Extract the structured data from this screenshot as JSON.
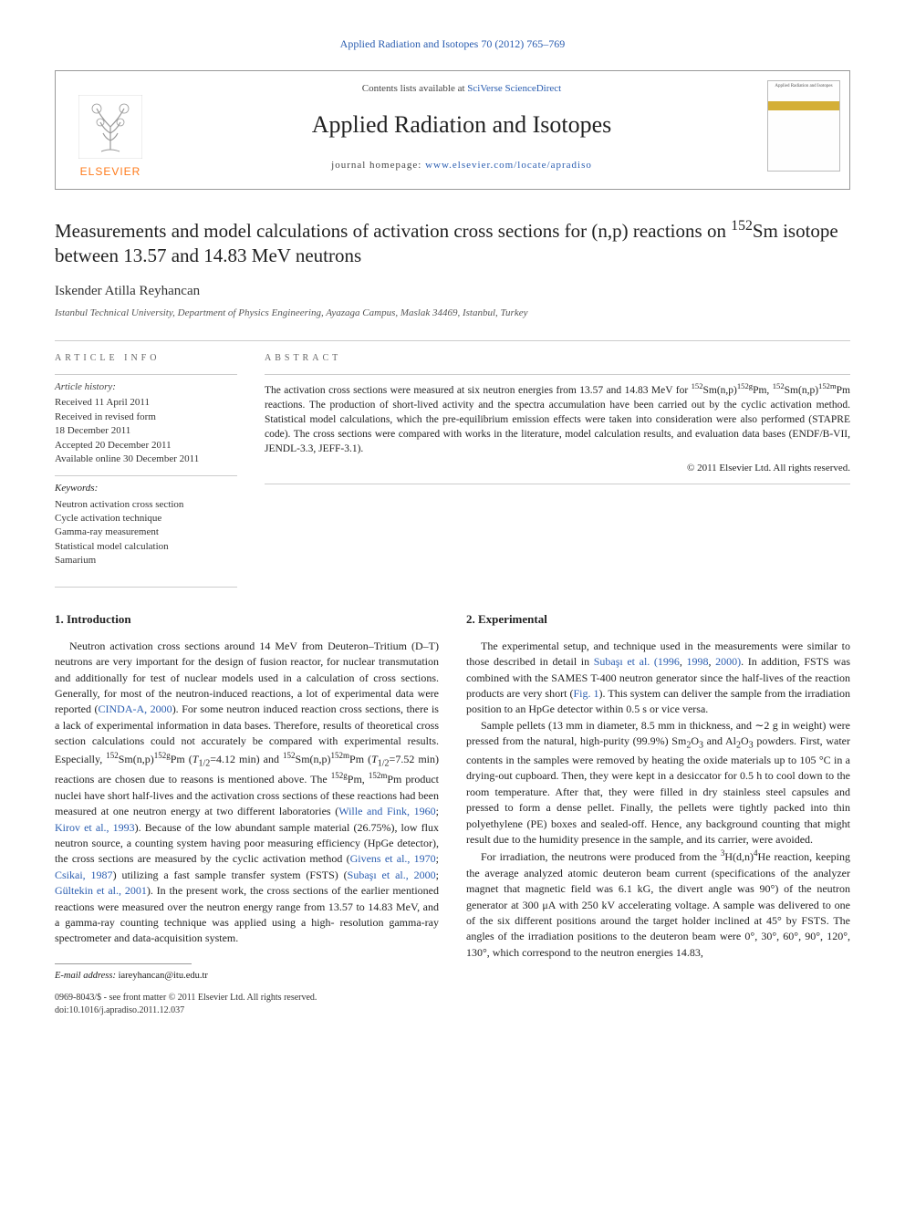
{
  "header": {
    "topLink": "Applied Radiation and Isotopes 70 (2012) 765–769",
    "contentsLine_pre": "Contents lists available at ",
    "contentsLine_link": "SciVerse ScienceDirect",
    "journalTitle": "Applied Radiation and Isotopes",
    "homepage_pre": "journal homepage: ",
    "homepage_link": "www.elsevier.com/locate/apradiso",
    "publisher": "ELSEVIER",
    "coverTitle": "Applied Radiation and Isotopes"
  },
  "paper": {
    "title_html": "Measurements and model calculations of activation cross sections for (n,p) reactions on <sup>152</sup>Sm isotope between 13.57 and 14.83 MeV neutrons",
    "author": "Iskender Atilla Reyhancan",
    "affiliation": "Istanbul Technical University, Department of Physics Engineering, Ayazaga Campus, Maslak 34469, Istanbul, Turkey"
  },
  "info": {
    "label": "ARTICLE INFO",
    "historyHdr": "Article history:",
    "history": [
      "Received 11 April 2011",
      "Received in revised form",
      "18 December 2011",
      "Accepted 20 December 2011",
      "Available online 30 December 2011"
    ],
    "keywordsHdr": "Keywords:",
    "keywords": [
      "Neutron activation cross section",
      "Cycle activation technique",
      "Gamma-ray measurement",
      "Statistical model calculation",
      "Samarium"
    ]
  },
  "abstract": {
    "label": "ABSTRACT",
    "text_html": "The activation cross sections were measured at six neutron energies from 13.57 and 14.83 MeV for <sup>152</sup>Sm(n,p)<sup>152g</sup>Pm, <sup>152</sup>Sm(n,p)<sup>152m</sup>Pm reactions. The production of short-lived activity and the spectra accumulation have been carried out by the cyclic activation method. Statistical model calculations, which the pre-equilibrium emission effects were taken into consideration were also performed (STAPRE code). The cross sections were compared with works in the literature, model calculation results, and evaluation data bases (ENDF/B-VII, JENDL-3.3, JEFF-3.1).",
    "copyright": "© 2011 Elsevier Ltd. All rights reserved."
  },
  "body": {
    "s1": {
      "heading": "1.  Introduction",
      "p1_html": "Neutron activation cross sections around 14 MeV from Deuteron–Tritium (D–T) neutrons are very important for the design of fusion reactor, for nuclear transmutation and additionally for test of nuclear models used in a calculation of cross sections. Generally, for most of the neutron-induced reactions, a lot of experimental data were reported (<span class=\"ref\">CINDA-A, 2000</span>). For some neutron induced reaction cross sections, there is a lack of experimental information in data bases. Therefore, results of theoretical cross section calculations could not accurately be compared with experimental results. Especially, <sup>152</sup>Sm(n,p)<sup>152g</sup>Pm (<i>T</i><sub>1/2</sub>=4.12 min) and <sup>152</sup>Sm(n,p)<sup>152m</sup>Pm (<i>T</i><sub>1/2</sub>=7.52 min) reactions are chosen due to reasons is mentioned above. The <sup>152g</sup>Pm, <sup>152m</sup>Pm product nuclei have short half-lives and the activation cross sections of these reactions had been measured at one neutron energy at two different laboratories (<span class=\"ref\">Wille and Fink, 1960</span>; <span class=\"ref\">Kirov et al., 1993</span>). Because of the low abundant sample material (26.75%), low flux neutron source, a counting system having poor measuring efficiency (HpGe detector), the cross sections are measured by the cyclic activation method (<span class=\"ref\">Givens et al., 1970</span>; <span class=\"ref\">Csikai, 1987</span>) utilizing a fast sample transfer system (FSTS) (<span class=\"ref\">Subaşı et al., 2000</span>; <span class=\"ref\">Gültekin et al., 2001</span>). In the present work, the cross sections of the earlier mentioned reactions were measured over the neutron energy range from 13.57 to 14.83 MeV, and a gamma-ray counting technique was applied using a high- resolution gamma-ray spectrometer and data-acquisition system."
    },
    "s2": {
      "heading": "2.  Experimental",
      "p1_html": "The experimental setup, and technique used in the measurements were similar to those described in detail in <span class=\"ref\">Subaşı et al. (1996</span>, <span class=\"ref\">1998</span>, <span class=\"ref\">2000)</span>. In addition, FSTS was combined with the SAMES T-400 neutron generator since the half-lives of the reaction products are very short (<span class=\"ref\">Fig. 1</span>). This system can deliver the sample from the irradiation position to an HpGe detector within 0.5 s or vice versa.",
      "p2_html": "Sample pellets (13 mm in diameter, 8.5 mm in thickness, and ∼2 g in weight) were pressed from the natural, high-purity (99.9%) Sm<sub>2</sub>O<sub>3</sub> and Al<sub>2</sub>O<sub>3</sub> powders. First, water contents in the samples were removed by heating the oxide materials up to 105 °C in a drying-out cupboard. Then, they were kept in a desiccator for 0.5 h to cool down to the room temperature. After that, they were filled in dry stainless steel capsules and pressed to form a dense pellet. Finally, the pellets were tightly packed into thin polyethylene (PE) boxes and sealed-off. Hence, any background counting that might result due to the humidity presence in the sample, and its carrier, were avoided.",
      "p3_html": "For irradiation, the neutrons were produced from the <sup>3</sup>H(d,n)<sup>4</sup>He reaction, keeping the average analyzed atomic deuteron beam current (specifications of the analyzer magnet that magnetic field was 6.1 kG, the divert angle was 90°) of the neutron generator at 300 μA with 250 kV accelerating voltage. A sample was delivered to one of the six different positions around the target holder inclined at 45° by FSTS. The angles of the irradiation positions to the deuteron beam were 0°, 30°, 60°, 90°, 120°, 130°, which correspond to the neutron energies 14.83,"
    }
  },
  "footer": {
    "emailLabel": "E-mail address:",
    "email": "iareyhancan@itu.edu.tr",
    "line1": "0969-8043/$ - see front matter © 2011 Elsevier Ltd. All rights reserved.",
    "line2": "doi:10.1016/j.apradiso.2011.12.037"
  },
  "colors": {
    "link": "#2a5db0",
    "elsevier": "#ff7a1a",
    "rule": "#cccccc",
    "text": "#222222"
  },
  "typography": {
    "bodyFont": "Georgia, 'Times New Roman', serif",
    "journalTitleSize": 26,
    "paperTitleSize": 21,
    "bodySize": 12,
    "smallSize": 11
  }
}
